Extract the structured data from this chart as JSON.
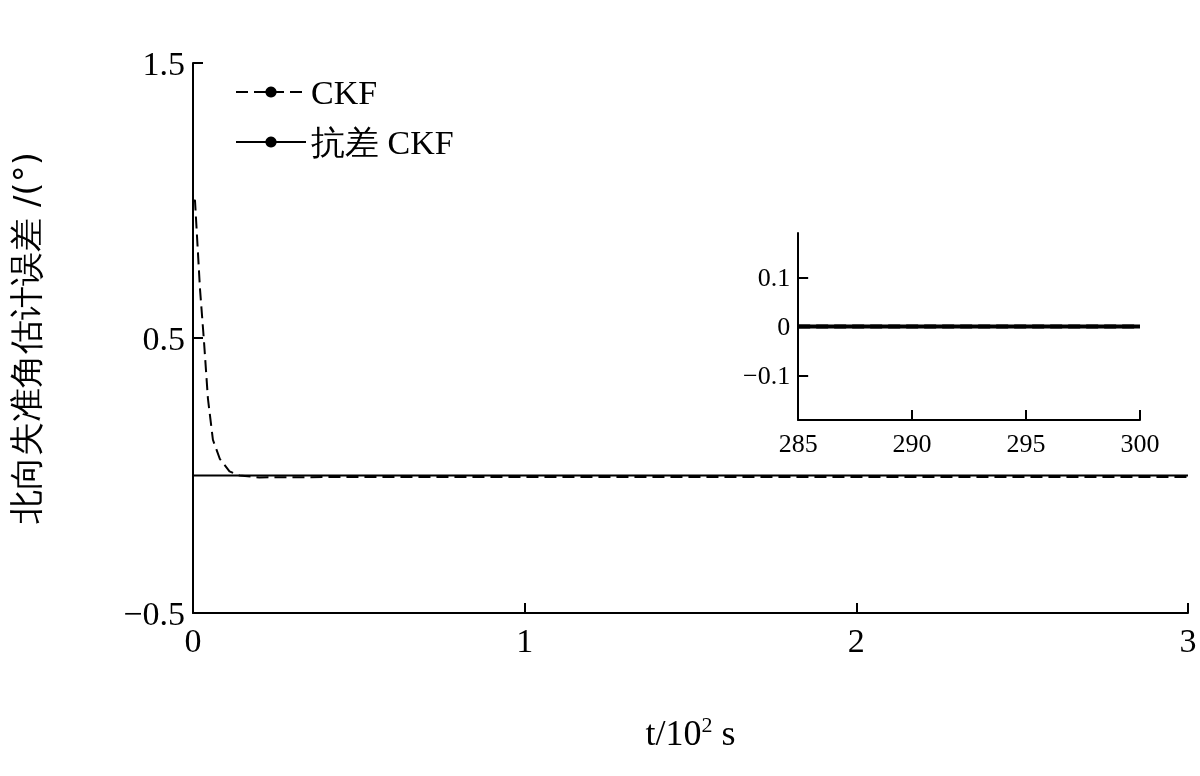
{
  "chart_data": [
    {
      "type": "line",
      "xlabel": "t/10$^{2}$ s",
      "ylabel": "北向失准角估计误差 /(°)",
      "xlim": [
        0,
        3
      ],
      "xticks": [
        0,
        1,
        2,
        3
      ],
      "ylim": [
        -0.5,
        1.5
      ],
      "yticks": [
        -0.5,
        0.5,
        1.5
      ],
      "grid": false,
      "legend": "top left",
      "marker": "none",
      "series": [
        {
          "name": "CKF",
          "color": "#000000",
          "line_style": "dashed",
          "x": [
            0,
            0.006,
            0.021,
            0.033,
            0.045,
            0.06,
            0.081,
            0.11,
            0.14,
            0.2,
            0.5,
            1,
            2,
            3
          ],
          "values": [
            1.0,
            1.0,
            0.68,
            0.49,
            0.28,
            0.13,
            0.06,
            0.015,
            0,
            -0.007,
            -0.005,
            -0.005,
            -0.005,
            -0.005
          ]
        },
        {
          "name": "抗差 CKF",
          "color": "#000000",
          "line_style": "solid",
          "x": [
            0,
            3
          ],
          "values": [
            0,
            0
          ]
        }
      ]
    },
    {
      "type": "line",
      "xlim": [
        285,
        300
      ],
      "xticks": [
        285,
        290,
        295,
        300
      ],
      "ylim": [
        -0.19,
        0.19
      ],
      "yticks": [
        -0.1,
        0,
        0.1
      ],
      "grid": false,
      "marker": "none",
      "series": [
        {
          "color": "#000000",
          "line_style": "dashed",
          "x": [
            285,
            300
          ],
          "values": [
            0,
            0
          ]
        },
        {
          "color": "#000000",
          "line_style": "solid",
          "x": [
            285,
            300
          ],
          "values": [
            0,
            0
          ]
        }
      ]
    }
  ]
}
